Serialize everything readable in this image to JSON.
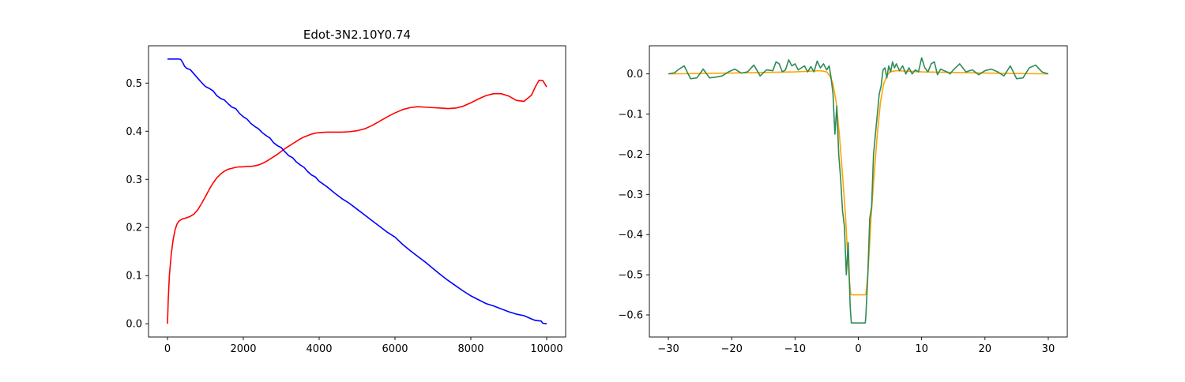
{
  "figure": {
    "background": "#ffffff"
  },
  "chart_data": [
    {
      "type": "line",
      "title": "Edot-3N2.10Y0.74",
      "xlabel": "",
      "ylabel": "",
      "xlim": [
        -500,
        10500
      ],
      "ylim": [
        -0.0275,
        0.5775
      ],
      "xticks": [
        0,
        2000,
        4000,
        6000,
        8000,
        10000
      ],
      "xtick_labels": [
        "0",
        "2000",
        "4000",
        "6000",
        "8000",
        "10000"
      ],
      "yticks": [
        0.0,
        0.1,
        0.2,
        0.3,
        0.4,
        0.5
      ],
      "ytick_labels": [
        "0.0",
        "0.1",
        "0.2",
        "0.3",
        "0.4",
        "0.5"
      ],
      "grid": false,
      "legend": "none",
      "series": [
        {
          "color": "#ff0000",
          "x": [
            0,
            20,
            50,
            100,
            150,
            200,
            250,
            300,
            350,
            400,
            450,
            500,
            600,
            700,
            800,
            900,
            1000,
            1100,
            1200,
            1300,
            1400,
            1500,
            1600,
            1700,
            1800,
            1900,
            2000,
            2100,
            2200,
            2300,
            2400,
            2500,
            2600,
            2700,
            2800,
            2900,
            3000,
            3100,
            3200,
            3300,
            3400,
            3500,
            3600,
            3700,
            3800,
            3900,
            4000,
            4200,
            4400,
            4600,
            4800,
            5000,
            5200,
            5400,
            5600,
            5800,
            6000,
            6200,
            6400,
            6600,
            6800,
            7000,
            7200,
            7400,
            7600,
            7800,
            8000,
            8200,
            8400,
            8600,
            8800,
            9000,
            9200,
            9400,
            9600,
            9700,
            9800,
            9900,
            10000
          ],
          "y": [
            0.0,
            0.05,
            0.1,
            0.145,
            0.175,
            0.195,
            0.207,
            0.213,
            0.216,
            0.218,
            0.219,
            0.22,
            0.223,
            0.228,
            0.237,
            0.25,
            0.264,
            0.279,
            0.292,
            0.303,
            0.311,
            0.317,
            0.321,
            0.323,
            0.325,
            0.326,
            0.326,
            0.327,
            0.327,
            0.328,
            0.33,
            0.333,
            0.337,
            0.342,
            0.347,
            0.352,
            0.358,
            0.364,
            0.369,
            0.374,
            0.379,
            0.384,
            0.388,
            0.391,
            0.394,
            0.396,
            0.397,
            0.398,
            0.398,
            0.398,
            0.399,
            0.401,
            0.405,
            0.412,
            0.421,
            0.43,
            0.438,
            0.445,
            0.449,
            0.451,
            0.45,
            0.449,
            0.448,
            0.447,
            0.448,
            0.452,
            0.459,
            0.467,
            0.474,
            0.478,
            0.478,
            0.473,
            0.464,
            0.462,
            0.475,
            0.492,
            0.506,
            0.505,
            0.492
          ]
        },
        {
          "color": "#0000ff",
          "x": [
            0,
            100,
            200,
            300,
            350,
            400,
            450,
            500,
            600,
            700,
            800,
            900,
            1000,
            1100,
            1200,
            1300,
            1400,
            1500,
            1600,
            1700,
            1800,
            1900,
            2000,
            2100,
            2200,
            2300,
            2400,
            2500,
            2600,
            2700,
            2800,
            2900,
            3000,
            3100,
            3200,
            3300,
            3400,
            3500,
            3600,
            3700,
            3800,
            3900,
            4000,
            4200,
            4400,
            4600,
            4800,
            5000,
            5200,
            5400,
            5600,
            5800,
            6000,
            6200,
            6400,
            6600,
            6800,
            7000,
            7200,
            7400,
            7600,
            7800,
            8000,
            8200,
            8400,
            8600,
            8800,
            9000,
            9200,
            9400,
            9600,
            9700,
            9800,
            9850,
            9900,
            10000
          ],
          "y": [
            0.55,
            0.55,
            0.55,
            0.55,
            0.549,
            0.543,
            0.535,
            0.531,
            0.528,
            0.519,
            0.51,
            0.501,
            0.493,
            0.489,
            0.484,
            0.474,
            0.468,
            0.465,
            0.457,
            0.45,
            0.447,
            0.437,
            0.43,
            0.425,
            0.416,
            0.41,
            0.405,
            0.397,
            0.391,
            0.386,
            0.376,
            0.37,
            0.366,
            0.357,
            0.349,
            0.345,
            0.336,
            0.33,
            0.325,
            0.316,
            0.309,
            0.305,
            0.296,
            0.285,
            0.272,
            0.26,
            0.25,
            0.238,
            0.226,
            0.214,
            0.202,
            0.19,
            0.18,
            0.165,
            0.152,
            0.14,
            0.128,
            0.115,
            0.102,
            0.09,
            0.079,
            0.068,
            0.058,
            0.05,
            0.042,
            0.037,
            0.031,
            0.025,
            0.02,
            0.017,
            0.01,
            0.007,
            0.006,
            0.006,
            0.001,
            0.0
          ]
        }
      ]
    },
    {
      "type": "line",
      "title": "",
      "xlabel": "",
      "ylabel": "",
      "xlim": [
        -33,
        33
      ],
      "ylim": [
        -0.655,
        0.07
      ],
      "xticks": [
        -30,
        -20,
        -10,
        0,
        10,
        20,
        30
      ],
      "xtick_labels": [
        "−30",
        "−20",
        "−10",
        "0",
        "10",
        "20",
        "30"
      ],
      "yticks": [
        0.0,
        -0.1,
        -0.2,
        -0.3,
        -0.4,
        -0.5,
        -0.6
      ],
      "ytick_labels": [
        "0.0",
        "−0.1",
        "−0.2",
        "−0.3",
        "−0.4",
        "−0.5",
        "−0.6"
      ],
      "grid": false,
      "legend": "none",
      "series": [
        {
          "color": "#ffa500",
          "x": [
            -30,
            -20,
            -10,
            -6,
            -5,
            -4.5,
            -4,
            -3.5,
            -3,
            -2.5,
            -2,
            -1.8,
            -1.5,
            -1.2,
            -1.1,
            -1,
            1,
            1.1,
            1.2,
            1.5,
            1.8,
            2,
            2.5,
            3,
            3.5,
            4,
            4.5,
            5,
            6,
            10,
            20,
            30
          ],
          "y": [
            0.0,
            0.002,
            0.005,
            0.008,
            0.005,
            -0.005,
            -0.025,
            -0.07,
            -0.15,
            -0.25,
            -0.36,
            -0.42,
            -0.5,
            -0.548,
            -0.55,
            -0.55,
            -0.55,
            -0.55,
            -0.548,
            -0.5,
            -0.42,
            -0.36,
            -0.25,
            -0.15,
            -0.07,
            -0.025,
            -0.005,
            0.005,
            0.008,
            0.005,
            0.002,
            0.0
          ]
        },
        {
          "color": "#2e8b57",
          "x": [
            -30,
            -29,
            -28.5,
            -27.5,
            -26.5,
            -25.5,
            -24.5,
            -23.5,
            -22.5,
            -21.5,
            -20.5,
            -19.5,
            -18.5,
            -17.5,
            -16.5,
            -15.5,
            -14.5,
            -13.5,
            -13,
            -12.5,
            -12,
            -11.5,
            -11,
            -10.5,
            -10,
            -9.5,
            -9,
            -8.5,
            -8,
            -7.5,
            -7,
            -6.5,
            -6,
            -5.5,
            -5,
            -4.6,
            -4.3,
            -4,
            -3.7,
            -3.4,
            -3.1,
            -2.8,
            -2.5,
            -2.2,
            -1.9,
            -1.6,
            -1.3,
            -1.2,
            -1.1,
            1.1,
            1.2,
            1.5,
            1.8,
            2.1,
            2.4,
            2.7,
            3,
            3.3,
            3.6,
            3.9,
            4.2,
            4.5,
            4.8,
            5.1,
            5.4,
            5.7,
            6,
            6.5,
            7,
            7.5,
            8,
            8.5,
            9,
            9.5,
            10,
            10.5,
            11,
            11.5,
            12,
            12.5,
            13,
            13.5,
            14,
            14.5,
            15,
            16,
            17,
            18,
            19,
            20,
            21,
            22,
            23,
            24,
            25,
            26,
            27,
            28,
            29,
            30
          ],
          "y": [
            0.0,
            0.003,
            0.01,
            0.02,
            -0.012,
            -0.01,
            0.012,
            -0.01,
            -0.008,
            -0.005,
            0.005,
            0.012,
            0.002,
            0.005,
            0.022,
            -0.005,
            0.01,
            0.008,
            0.03,
            0.025,
            0.005,
            0.01,
            0.035,
            0.02,
            0.025,
            0.01,
            0.015,
            0.02,
            0.005,
            0.018,
            0.005,
            0.032,
            0.015,
            0.025,
            0.01,
            0.02,
            -0.01,
            -0.05,
            -0.15,
            -0.08,
            -0.2,
            -0.26,
            -0.34,
            -0.38,
            -0.5,
            -0.42,
            -0.575,
            -0.6,
            -0.62,
            -0.62,
            -0.6,
            -0.5,
            -0.36,
            -0.33,
            -0.2,
            -0.15,
            -0.1,
            -0.05,
            -0.03,
            0.01,
            0.015,
            -0.01,
            0.02,
            0.005,
            0.03,
            0.015,
            0.025,
            0.008,
            0.02,
            0.0,
            0.015,
            0.0,
            0.01,
            0.005,
            0.04,
            0.015,
            0.005,
            0.025,
            0.03,
            -0.002,
            0.012,
            0.008,
            0.005,
            0.0,
            0.01,
            0.025,
            0.005,
            0.01,
            -0.002,
            0.008,
            0.012,
            0.005,
            -0.005,
            0.02,
            -0.012,
            -0.01,
            0.015,
            0.022,
            0.005,
            0.0
          ]
        }
      ]
    }
  ]
}
